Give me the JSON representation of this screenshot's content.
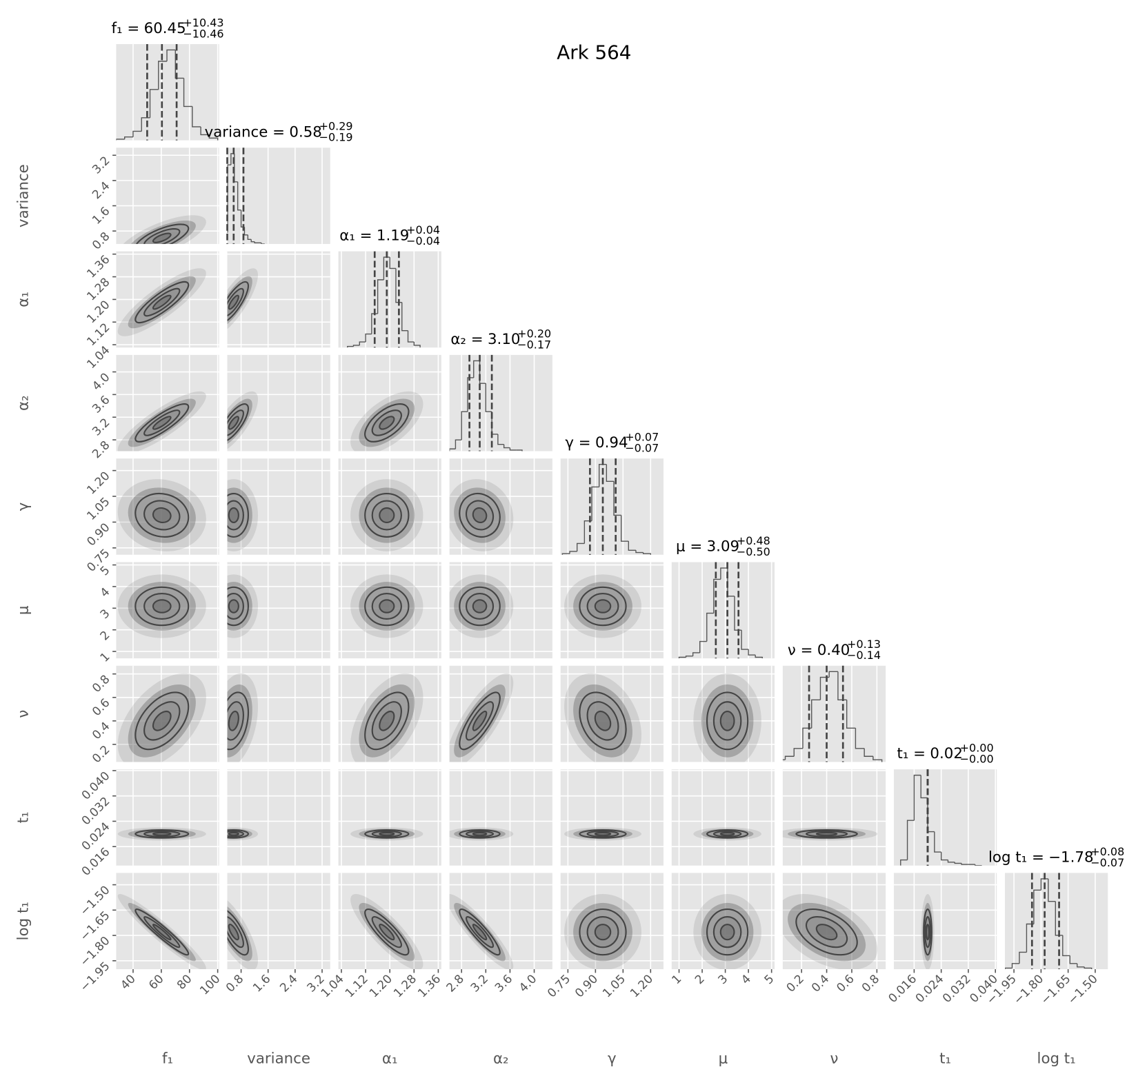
{
  "chart_data": {
    "type": "corner",
    "title": "Ark 564",
    "parameters": [
      {
        "name": "f₁",
        "title": "f₁ =",
        "median": 60.45,
        "plus": {
          "value": 10.43,
          "label": "+10.43"
        },
        "minus": {
          "value": -10.46,
          "label": "−10.46"
        },
        "lim": [
          28,
          101
        ],
        "ticks": [
          40,
          60,
          80,
          100
        ],
        "bins": [
          28,
          34,
          40,
          46,
          52,
          58,
          64,
          70,
          76,
          82,
          88,
          94,
          100
        ],
        "counts": [
          1,
          3,
          8,
          20,
          45,
          70,
          80,
          55,
          30,
          12,
          5,
          2
        ]
      },
      {
        "name": "variance",
        "title": "variance =",
        "median": 0.58,
        "plus": {
          "value": 0.29,
          "label": "+0.29"
        },
        "minus": {
          "value": -0.19,
          "label": "−0.19"
        },
        "lim": [
          0.39,
          3.44
        ],
        "ticks": [
          0.8,
          1.6,
          2.4,
          3.2
        ],
        "bins": [
          0.3,
          0.4,
          0.5,
          0.6,
          0.7,
          0.8,
          0.9,
          1.0,
          1.1,
          1.2,
          1.3,
          1.4,
          1.5
        ],
        "counts": [
          10,
          70,
          80,
          55,
          30,
          15,
          8,
          4,
          2,
          1,
          1,
          0
        ]
      },
      {
        "name": "α₁",
        "title": "α₁ =",
        "median": 1.19,
        "plus": {
          "value": 0.04,
          "label": "+0.04"
        },
        "minus": {
          "value": -0.04,
          "label": "−0.04"
        },
        "lim": [
          1.03,
          1.37
        ],
        "ticks": [
          1.04,
          1.12,
          {
            "value": 1.2,
            "label": "1.20"
          },
          1.28,
          1.36
        ],
        "bins": [
          1.06,
          1.08,
          1.1,
          1.12,
          1.14,
          1.16,
          1.18,
          1.2,
          1.22,
          1.24,
          1.26,
          1.28,
          1.3
        ],
        "counts": [
          1,
          2,
          5,
          12,
          30,
          60,
          80,
          70,
          40,
          15,
          5,
          2
        ]
      },
      {
        "name": "α₂",
        "title": "α₂ =",
        "median": 3.1,
        "value_label": "3.10",
        "plus": {
          "value": 0.2,
          "label": "+0.20"
        },
        "minus": {
          "value": -0.17,
          "label": "−0.17"
        },
        "lim": [
          2.6,
          4.3
        ],
        "ticks": [
          2.8,
          3.2,
          3.6,
          {
            "value": 4,
            "label": "4.0"
          }
        ],
        "bins": [
          2.6,
          2.7,
          2.8,
          2.9,
          3.0,
          3.1,
          3.2,
          3.3,
          3.4,
          3.5,
          3.6,
          3.7,
          3.8
        ],
        "counts": [
          2,
          10,
          35,
          65,
          80,
          60,
          35,
          15,
          6,
          3,
          1,
          1
        ]
      },
      {
        "name": "γ",
        "title": "γ =",
        "median": 0.94,
        "plus": {
          "value": 0.07,
          "label": "+0.07"
        },
        "minus": {
          "value": -0.07,
          "label": "−0.07"
        },
        "lim": [
          0.71,
          1.27
        ],
        "ticks": [
          0.75,
          {
            "value": 0.9,
            "label": "0.90"
          },
          1.05,
          {
            "value": 1.2,
            "label": "1.20"
          }
        ],
        "bins": [
          0.72,
          0.76,
          0.8,
          0.84,
          0.88,
          0.92,
          0.96,
          1.0,
          1.04,
          1.08,
          1.12,
          1.16,
          1.2
        ],
        "counts": [
          1,
          3,
          10,
          30,
          60,
          80,
          65,
          35,
          12,
          4,
          2,
          1
        ]
      },
      {
        "name": "μ",
        "title": "μ =",
        "median": 3.09,
        "plus": {
          "value": 0.48,
          "label": "+0.48"
        },
        "minus": {
          "value": -0.5,
          "label": "−0.50"
        },
        "lim": [
          0.68,
          5.13
        ],
        "ticks": [
          1,
          2,
          3,
          4,
          5
        ],
        "bins": [
          1.0,
          1.3,
          1.6,
          1.9,
          2.2,
          2.5,
          2.8,
          3.1,
          3.4,
          3.7,
          4.0,
          4.3,
          4.6
        ],
        "counts": [
          1,
          2,
          5,
          15,
          40,
          70,
          80,
          55,
          25,
          8,
          3,
          1
        ]
      },
      {
        "name": "ν",
        "title": "ν =",
        "median": 0.4,
        "value_label": "0.40",
        "plus": {
          "value": 0.13,
          "label": "+0.13"
        },
        "minus": {
          "value": -0.14,
          "label": "−0.14"
        },
        "lim": [
          0.05,
          0.87
        ],
        "ticks": [
          0.2,
          0.4,
          0.6,
          0.8
        ],
        "bins": [
          0.0,
          0.07,
          0.14,
          0.21,
          0.28,
          0.35,
          0.42,
          0.49,
          0.56,
          0.63,
          0.7,
          0.77,
          0.84
        ],
        "counts": [
          2,
          5,
          12,
          30,
          55,
          75,
          80,
          55,
          30,
          12,
          5,
          2
        ]
      },
      {
        "name": "t₁",
        "title": "t₁ =",
        "median": 0.02,
        "plus": {
          "value": 0,
          "label": "+0.00"
        },
        "minus": {
          "value": 0,
          "label": "−0.00"
        },
        "lim": [
          0.01,
          0.0404
        ],
        "ticks": [
          0.016,
          0.024,
          0.032,
          {
            "value": 0.04,
            "label": "0.040"
          }
        ],
        "bins": [
          0.012,
          0.014,
          0.016,
          0.018,
          0.02,
          0.022,
          0.024,
          0.026,
          0.028,
          0.03,
          0.032,
          0.034,
          0.036
        ],
        "counts": [
          5,
          40,
          80,
          60,
          30,
          12,
          5,
          3,
          2,
          1,
          1,
          0
        ]
      },
      {
        "name": "log t₁",
        "title": "log t₁ =",
        "median": {
          "value": -1.78,
          "label": "−1.78"
        },
        "plus": {
          "value": 0.08,
          "label": "+0.08"
        },
        "minus": {
          "value": -0.07,
          "label": "−0.07"
        },
        "lim": [
          -2.0,
          -1.43
        ],
        "ticks": [
          {
            "value": -1.95,
            "label": "−1.95"
          },
          {
            "value": -1.8,
            "label": "−1.80"
          },
          {
            "value": -1.65,
            "label": "−1.65"
          },
          {
            "value": -1.5,
            "label": "−1.50"
          }
        ],
        "bins": [
          -2.0,
          -1.96,
          -1.92,
          -1.88,
          -1.84,
          -1.8,
          -1.76,
          -1.72,
          -1.68,
          -1.64,
          -1.6,
          -1.56,
          -1.52
        ],
        "counts": [
          1,
          5,
          15,
          40,
          70,
          80,
          60,
          30,
          12,
          5,
          2,
          1
        ]
      }
    ],
    "correlations": [
      [
        0.7
      ],
      [
        0.85,
        0.8
      ],
      [
        0.85,
        0.75,
        0.6
      ],
      [
        -0.1,
        0,
        0,
        -0.1
      ],
      [
        0,
        0,
        0,
        0,
        0
      ],
      [
        0.5,
        0.3,
        0.5,
        0.8,
        -0.3,
        0
      ],
      [
        -0.9,
        -0.7,
        -0.8,
        -0.85,
        0,
        0,
        -0.4
      ],
      [
        -0.95,
        -0.75,
        -0.85,
        -0.9,
        0,
        0,
        -0.45,
        0.98
      ]
    ]
  }
}
